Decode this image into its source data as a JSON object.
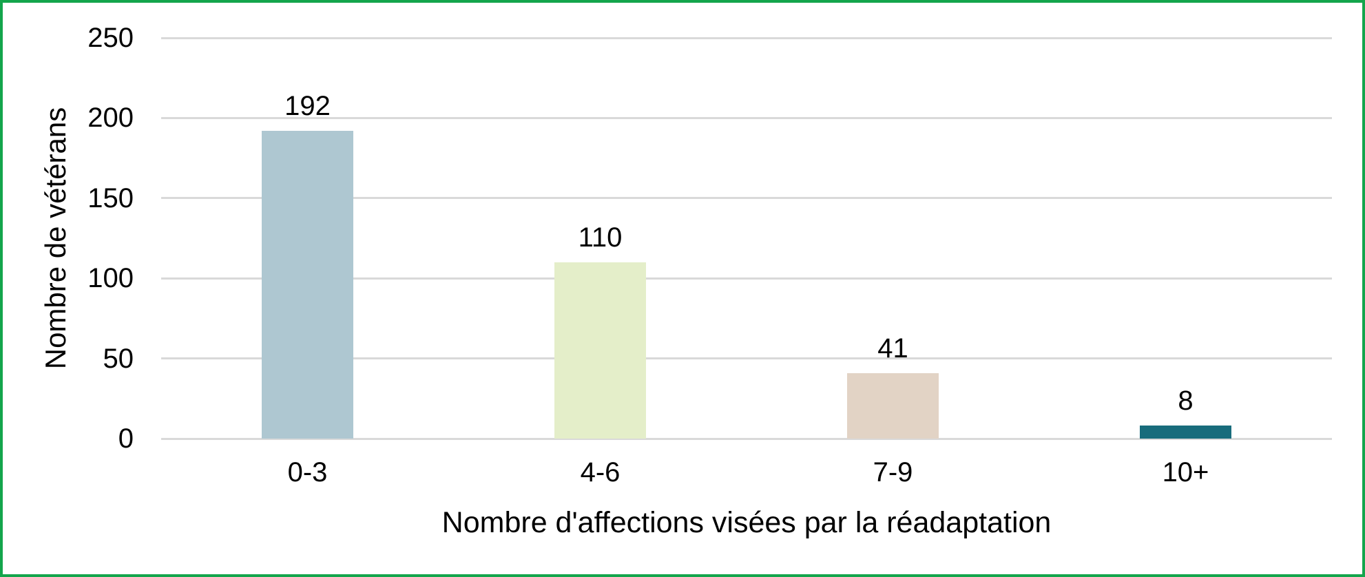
{
  "frame": {
    "border_color": "#14a54c",
    "background_color": "#ffffff",
    "gridline_color": "#d9d9d9",
    "text_color": "#000000"
  },
  "chart_data": {
    "type": "bar",
    "categories": [
      "0-3",
      "4-6",
      "7-9",
      "10+"
    ],
    "values": [
      192,
      110,
      41,
      8
    ],
    "bar_colors": [
      "#aec7d1",
      "#e4eec9",
      "#e2d3c5",
      "#186c7c"
    ],
    "xlabel": "Nombre d'affections visées par la réadaptation",
    "ylabel": "Nombre de vétérans",
    "ylim": [
      0,
      250
    ],
    "yticks": [
      0,
      50,
      100,
      150,
      200,
      250
    ],
    "grid": "horizontal",
    "legend": "none",
    "data_labels": true
  }
}
